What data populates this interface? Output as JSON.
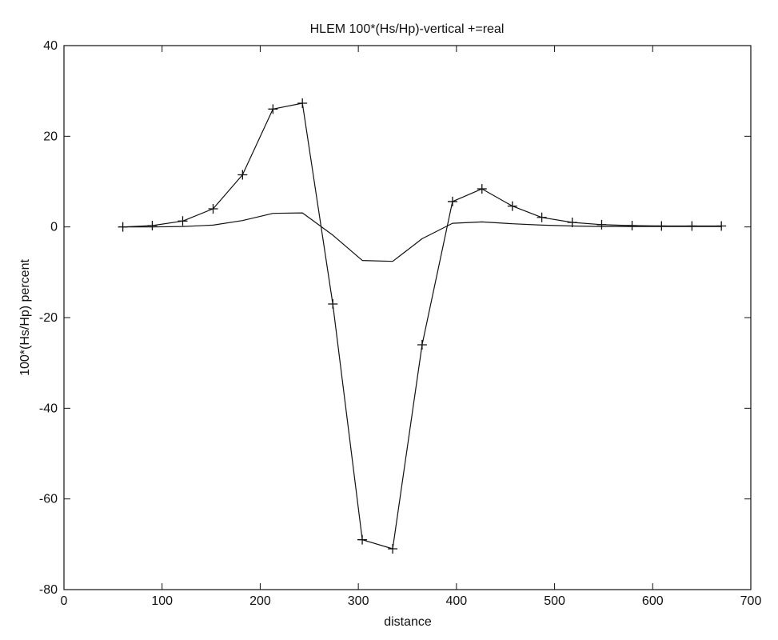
{
  "chart_data": {
    "type": "line",
    "title": "HLEM  100*(Hs/Hp)-vertical  +=real",
    "xlabel": "distance",
    "ylabel": "100*(Hs/Hp) percent",
    "xlim": [
      0,
      700
    ],
    "ylim": [
      -80,
      40
    ],
    "x_ticks": [
      0,
      100,
      200,
      300,
      400,
      500,
      600,
      700
    ],
    "y_ticks": [
      -80,
      -60,
      -40,
      -20,
      0,
      20,
      40
    ],
    "grid": false,
    "series": [
      {
        "marker": "plus",
        "x": [
          60,
          90,
          121,
          152,
          182,
          213,
          243,
          274,
          304,
          335,
          365,
          396,
          426,
          457,
          487,
          518,
          548,
          579,
          609,
          640,
          670
        ],
        "y": [
          0,
          0.3,
          1.3,
          4,
          11.5,
          26,
          27.3,
          -17,
          -69,
          -71,
          -26,
          5.6,
          8.4,
          4.6,
          2.1,
          1,
          0.5,
          0.3,
          0.2,
          0.2,
          0.2
        ]
      },
      {
        "marker": "none",
        "x": [
          60,
          90,
          121,
          152,
          182,
          213,
          243,
          274,
          304,
          335,
          365,
          396,
          426,
          457,
          487,
          518,
          548,
          579,
          609,
          640,
          670
        ],
        "y": [
          0,
          0,
          0.1,
          0.4,
          1.4,
          3,
          3.1,
          -1.8,
          -7.4,
          -7.6,
          -2.6,
          0.8,
          1.1,
          0.7,
          0.4,
          0.2,
          0.1,
          0.1,
          0.1,
          0.1,
          0.1
        ]
      }
    ]
  }
}
